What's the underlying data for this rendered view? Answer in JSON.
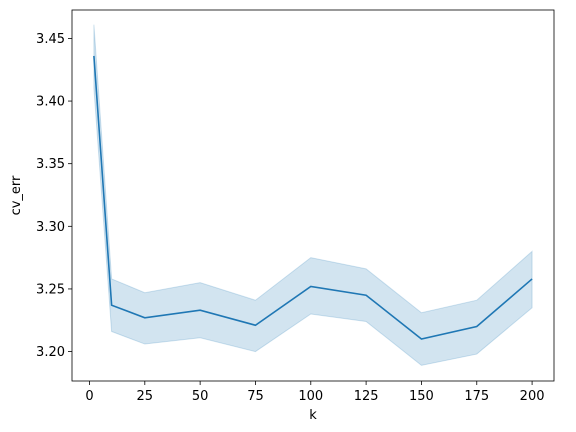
{
  "chart_data": {
    "type": "line",
    "title": "",
    "xlabel": "k",
    "ylabel": "cv_err",
    "xlim": [
      -7.9,
      209.9
    ],
    "ylim": [
      3.1765,
      3.4727
    ],
    "grid": false,
    "legend": "none",
    "line_color": "#1f77b4",
    "band_color": "#1f77b4",
    "x_ticks": [
      0,
      25,
      50,
      75,
      100,
      125,
      150,
      175,
      200
    ],
    "y_ticks": [
      3.2,
      3.25,
      3.3,
      3.35,
      3.4,
      3.45
    ],
    "x_tick_labels": [
      "0",
      "25",
      "50",
      "75",
      "100",
      "125",
      "150",
      "175",
      "200"
    ],
    "y_tick_labels": [
      "3.20",
      "3.25",
      "3.30",
      "3.35",
      "3.40",
      "3.45"
    ],
    "series": [
      {
        "x": [
          2,
          10,
          25,
          50,
          75,
          100,
          125,
          150,
          175,
          200
        ],
        "y": [
          3.436,
          3.237,
          3.227,
          3.233,
          3.221,
          3.252,
          3.245,
          3.21,
          3.22,
          3.258
        ],
        "ci_low": [
          3.41,
          3.216,
          3.206,
          3.211,
          3.2,
          3.23,
          3.224,
          3.189,
          3.198,
          3.235
        ],
        "ci_high": [
          3.461,
          3.258,
          3.247,
          3.255,
          3.241,
          3.275,
          3.266,
          3.231,
          3.241,
          3.28
        ]
      }
    ]
  }
}
